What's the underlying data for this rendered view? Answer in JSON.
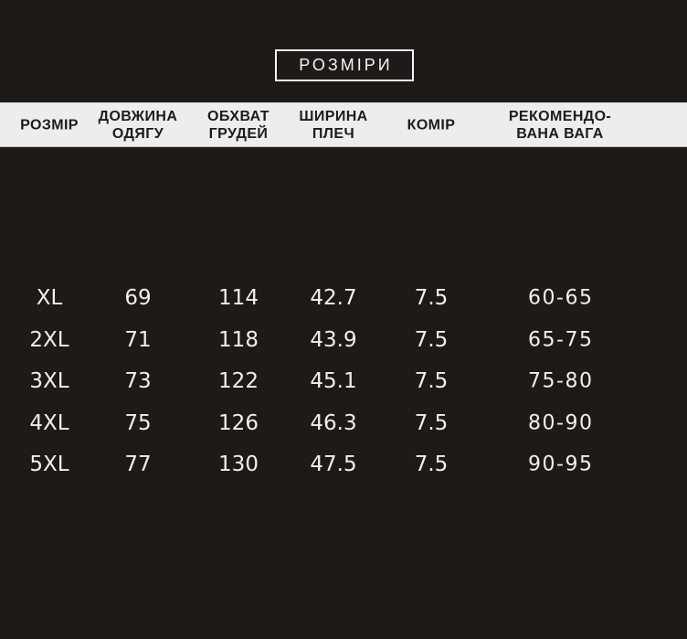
{
  "title": "РОЗМІРИ",
  "colors": {
    "background": "#1d1a18",
    "header_band": "#ededed",
    "header_text": "#1c1c1c",
    "light_text": "#f2efec",
    "title_border": "#f6f5f4"
  },
  "chart_data": {
    "type": "table",
    "title": "РОЗМІРИ",
    "columns": [
      "РОЗМІР",
      "ДОВЖИНА ОДЯГУ",
      "ОБХВАТ ГРУДЕЙ",
      "ШИРИНА ПЛЕЧ",
      "КОМІР",
      "РЕКОМЕНДОВАНА ВАГА"
    ],
    "header_lines": [
      [
        "РОЗМІР"
      ],
      [
        "ДОВЖИНА",
        "ОДЯГУ"
      ],
      [
        "ОБХВАТ",
        "ГРУДЕЙ"
      ],
      [
        "ШИРИНА",
        "ПЛЕЧ"
      ],
      [
        "КОМІР"
      ],
      [
        "РЕКОМЕНДО-",
        "ВАНА ВАГА"
      ]
    ],
    "rows": [
      [
        "XL",
        "69",
        "114",
        "42.7",
        "7.5",
        "60-65"
      ],
      [
        "2XL",
        "71",
        "118",
        "43.9",
        "7.5",
        "65-75"
      ],
      [
        "3XL",
        "73",
        "122",
        "45.1",
        "7.5",
        "75-80"
      ],
      [
        "4XL",
        "75",
        "126",
        "46.3",
        "7.5",
        "80-90"
      ],
      [
        "5XL",
        "77",
        "130",
        "47.5",
        "7.5",
        "90-95"
      ]
    ]
  }
}
